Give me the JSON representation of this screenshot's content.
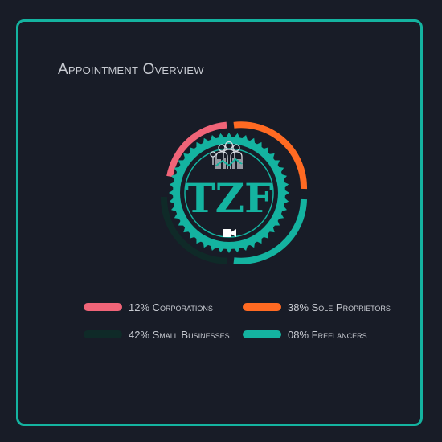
{
  "header": {
    "title": "Appointment Overview"
  },
  "logo": {
    "text": "TZF"
  },
  "colors": {
    "accent": "#14b3a0",
    "background": "#181c27",
    "corporations": "#f06478",
    "sole_proprietors": "#ff6a22",
    "small_businesses": "#0f2a28",
    "freelancers": "#14b3a0"
  },
  "legend": {
    "corporations": "12% Corporations",
    "sole_proprietors": "38% Sole Proprietors",
    "small_businesses": "42% Small Businesses",
    "freelancers": "08% Freelancers"
  },
  "icons": [
    "people-icon",
    "video-camera-icon"
  ]
}
